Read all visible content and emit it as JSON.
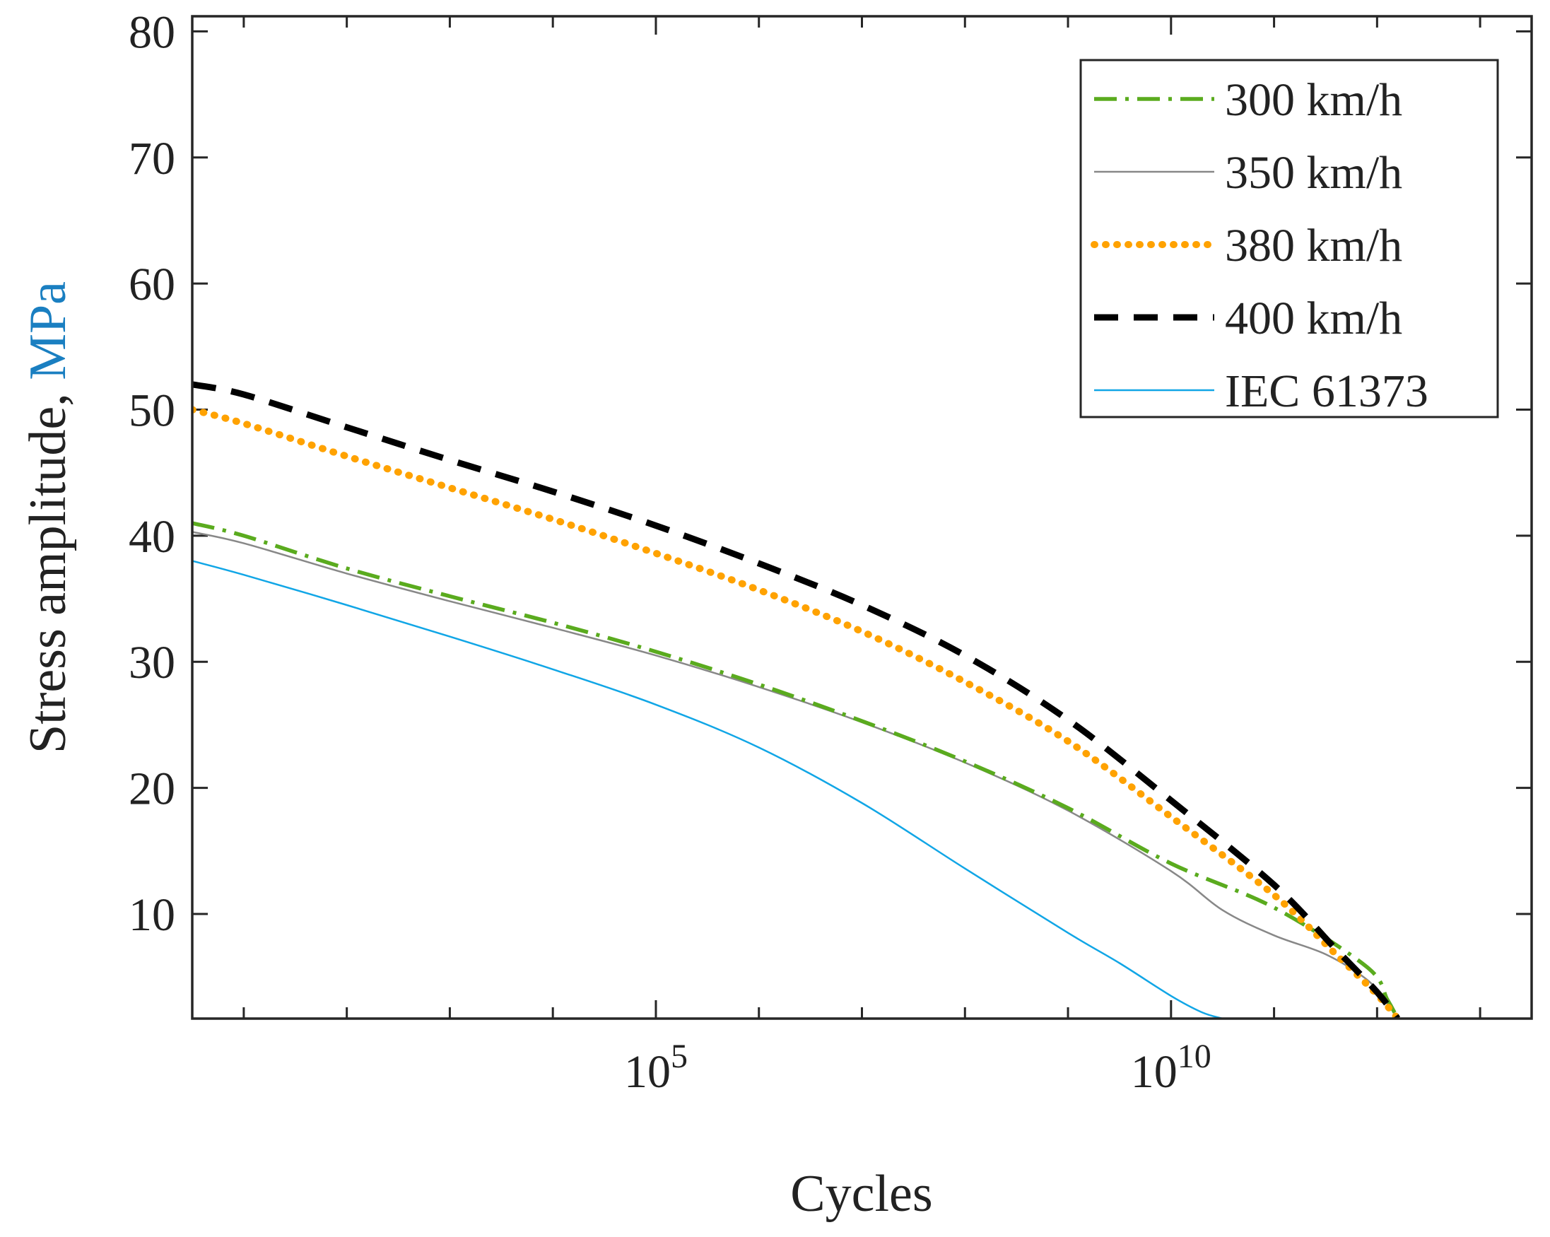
{
  "chart_data": {
    "type": "line",
    "title": "",
    "xlabel": "Cycles",
    "ylabel": "Stress amplitude, MPa",
    "ylabel_main": "Stress amplitude, ",
    "ylabel_unit": "MPa",
    "x_scale": "log",
    "xlim_log10": [
      0.5,
      13.5
    ],
    "ylim": [
      1.7,
      81.2
    ],
    "x_ticks": [
      {
        "log10": 5,
        "base": "10",
        "exp": "5"
      },
      {
        "log10": 10,
        "base": "10",
        "exp": "10"
      }
    ],
    "y_ticks": [
      10,
      20,
      30,
      40,
      50,
      60,
      70,
      80
    ],
    "legend_position": "top-right",
    "series": [
      {
        "name": "300 km/h",
        "color": "#5aab1e",
        "style": "dashdot",
        "x_log10": [
          0.5,
          1,
          2,
          3,
          4,
          5,
          6,
          7,
          8,
          9,
          10,
          11,
          11.9,
          12.1,
          12.2
        ],
        "y": [
          41.0,
          40.0,
          37.4,
          35.2,
          33.1,
          30.8,
          28.2,
          25.3,
          22.1,
          18.4,
          14.0,
          10.5,
          5.8,
          3.2,
          1.7
        ]
      },
      {
        "name": "350 km/h",
        "color": "#888888",
        "style": "solid",
        "x_log10": [
          0.5,
          1,
          2,
          3,
          4,
          5,
          6,
          7,
          8,
          9,
          10,
          10.5,
          11,
          11.5,
          11.9,
          12.1,
          12.2
        ],
        "y": [
          40.3,
          39.4,
          37.0,
          34.8,
          32.7,
          30.5,
          28.0,
          25.2,
          22.0,
          18.2,
          13.4,
          10.3,
          8.3,
          6.8,
          4.8,
          2.9,
          1.7
        ]
      },
      {
        "name": "380 km/h",
        "color": "#ffa200",
        "style": "dotted",
        "x_log10": [
          0.5,
          1,
          2,
          3,
          4,
          5,
          6,
          7,
          8,
          9,
          10,
          11,
          11.6,
          12.0,
          12.2
        ],
        "y": [
          50.0,
          48.9,
          46.3,
          43.8,
          41.3,
          38.6,
          35.7,
          32.4,
          28.4,
          23.7,
          17.7,
          11.5,
          6.8,
          3.6,
          1.7
        ]
      },
      {
        "name": "400 km/h",
        "color": "#000000",
        "style": "dashed",
        "x_log10": [
          0.5,
          1,
          2,
          3,
          4,
          5,
          6,
          7,
          8,
          9,
          10,
          11,
          11.6,
          12.0,
          12.2
        ],
        "y": [
          52.0,
          51.2,
          48.6,
          46.0,
          43.5,
          40.8,
          37.8,
          34.5,
          30.5,
          25.4,
          19.0,
          12.3,
          7.2,
          3.8,
          1.7
        ]
      },
      {
        "name": "IEC 61373",
        "color": "#11a6e6",
        "style": "solid",
        "x_log10": [
          0.5,
          1,
          2,
          3,
          4,
          5,
          6,
          7,
          8,
          9,
          9.5,
          10,
          10.3,
          10.5
        ],
        "y": [
          38.0,
          36.9,
          34.5,
          32.0,
          29.4,
          26.6,
          23.2,
          18.8,
          13.6,
          8.5,
          6.1,
          3.5,
          2.2,
          1.7
        ]
      }
    ]
  }
}
